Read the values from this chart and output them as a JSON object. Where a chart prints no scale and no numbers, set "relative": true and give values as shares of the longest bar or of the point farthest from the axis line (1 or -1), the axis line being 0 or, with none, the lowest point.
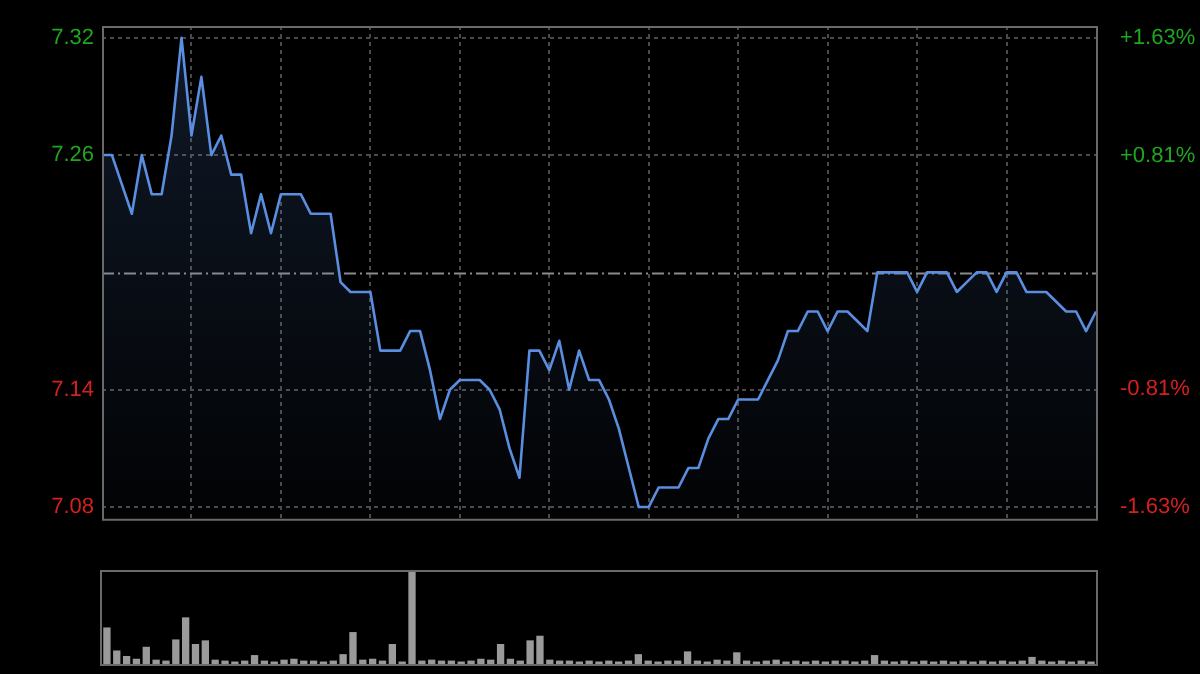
{
  "chart_data": [
    {
      "type": "area",
      "categories": [
        null,
        null,
        null,
        null,
        null,
        null,
        null,
        null,
        null,
        null,
        null,
        null,
        null,
        null,
        null,
        null,
        null,
        null,
        null,
        null,
        null,
        null,
        null,
        null,
        null,
        null,
        null,
        null,
        null,
        null,
        null,
        null,
        null,
        null,
        null,
        null,
        null,
        null,
        null,
        null,
        null,
        null,
        null,
        null,
        null,
        null,
        null,
        null,
        null,
        null,
        null,
        null,
        null,
        null,
        null,
        null,
        null,
        null,
        null,
        null,
        null,
        null,
        null,
        null,
        null,
        null,
        null,
        null,
        null,
        null,
        null,
        null,
        null,
        null,
        null,
        null,
        null,
        null,
        null,
        null,
        null,
        null,
        null,
        null,
        null,
        null,
        null,
        null,
        null,
        null,
        null,
        null,
        null,
        null,
        null,
        null,
        null,
        null,
        null,
        null,
        null
      ],
      "series": [
        {
          "color": "#5a8ee0",
          "values": [
            7.26,
            7.26,
            7.245,
            7.23,
            7.26,
            7.24,
            7.24,
            7.27,
            7.32,
            7.27,
            7.3,
            7.26,
            7.27,
            7.25,
            7.25,
            7.22,
            7.24,
            7.22,
            7.24,
            7.24,
            7.24,
            7.23,
            7.23,
            7.23,
            7.195,
            7.19,
            7.19,
            7.19,
            7.16,
            7.16,
            7.16,
            7.17,
            7.17,
            7.15,
            7.125,
            7.14,
            7.145,
            7.145,
            7.145,
            7.14,
            7.13,
            7.11,
            7.095,
            7.16,
            7.16,
            7.15,
            7.165,
            7.14,
            7.16,
            7.145,
            7.145,
            7.135,
            7.12,
            7.1,
            7.08,
            7.08,
            7.09,
            7.09,
            7.09,
            7.1,
            7.1,
            7.115,
            7.125,
            7.125,
            7.135,
            7.135,
            7.135,
            7.145,
            7.155,
            7.17,
            7.17,
            7.18,
            7.18,
            7.17,
            7.18,
            7.18,
            7.175,
            7.17,
            7.2,
            7.2,
            7.2,
            7.2,
            7.19,
            7.2,
            7.2,
            7.2,
            7.19,
            7.195,
            7.2,
            7.2,
            7.19,
            7.2,
            7.2,
            7.19,
            7.19,
            7.19,
            7.185,
            7.18,
            7.18,
            7.17,
            7.18
          ]
        }
      ],
      "ylim": [
        7.074,
        7.326
      ],
      "yticks": [
        7.32,
        7.26,
        7.14,
        7.08
      ],
      "y2lim": [
        -1.71,
        1.71
      ],
      "y2ticks": [
        {
          "value": 1.63,
          "label": "+1.63%"
        },
        {
          "value": 0.81,
          "label": "+0.81%"
        },
        {
          "value": -0.81,
          "label": "-0.81%"
        },
        {
          "value": -1.63,
          "label": "-1.63%"
        }
      ],
      "ref_lines": [
        {
          "axis": "y",
          "value": 7.2,
          "color": "#8a8a8a",
          "line_style": "dashed"
        }
      ],
      "grid": true
    },
    {
      "type": "bar",
      "relative": true,
      "color": "#9a9a9a",
      "categories": [
        null,
        null,
        null,
        null,
        null,
        null,
        null,
        null,
        null,
        null,
        null,
        null,
        null,
        null,
        null,
        null,
        null,
        null,
        null,
        null,
        null,
        null,
        null,
        null,
        null,
        null,
        null,
        null,
        null,
        null,
        null,
        null,
        null,
        null,
        null,
        null,
        null,
        null,
        null,
        null,
        null,
        null,
        null,
        null,
        null,
        null,
        null,
        null,
        null,
        null,
        null,
        null,
        null,
        null,
        null,
        null,
        null,
        null,
        null,
        null,
        null,
        null,
        null,
        null,
        null,
        null,
        null,
        null,
        null,
        null,
        null,
        null,
        null,
        null,
        null,
        null,
        null,
        null,
        null,
        null,
        null,
        null,
        null,
        null,
        null,
        null,
        null,
        null,
        null,
        null,
        null,
        null,
        null,
        null,
        null,
        null,
        null,
        null,
        null,
        null,
        null
      ],
      "values": [
        0.39,
        0.14,
        0.08,
        0.05,
        0.18,
        0.04,
        0.03,
        0.26,
        0.5,
        0.21,
        0.25,
        0.04,
        0.03,
        0.02,
        0.03,
        0.09,
        0.03,
        0.02,
        0.04,
        0.05,
        0.03,
        0.03,
        0.02,
        0.03,
        0.1,
        0.34,
        0.04,
        0.05,
        0.03,
        0.21,
        0.02,
        1,
        0.03,
        0.04,
        0.03,
        0.03,
        0.02,
        0.03,
        0.05,
        0.04,
        0.21,
        0.05,
        0.03,
        0.25,
        0.3,
        0.04,
        0.03,
        0.03,
        0.02,
        0.03,
        0.02,
        0.03,
        0.02,
        0.03,
        0.1,
        0.03,
        0.02,
        0.03,
        0.03,
        0.13,
        0.03,
        0.02,
        0.04,
        0.03,
        0.12,
        0.03,
        0.02,
        0.03,
        0.04,
        0.02,
        0.03,
        0.02,
        0.03,
        0.02,
        0.03,
        0.03,
        0.02,
        0.03,
        0.09,
        0.03,
        0.02,
        0.03,
        0.02,
        0.03,
        0.02,
        0.03,
        0.02,
        0.03,
        0.02,
        0.03,
        0.02,
        0.03,
        0.02,
        0.03,
        0.07,
        0.03,
        0.02,
        0.03,
        0.02,
        0.03,
        0.02
      ]
    }
  ]
}
